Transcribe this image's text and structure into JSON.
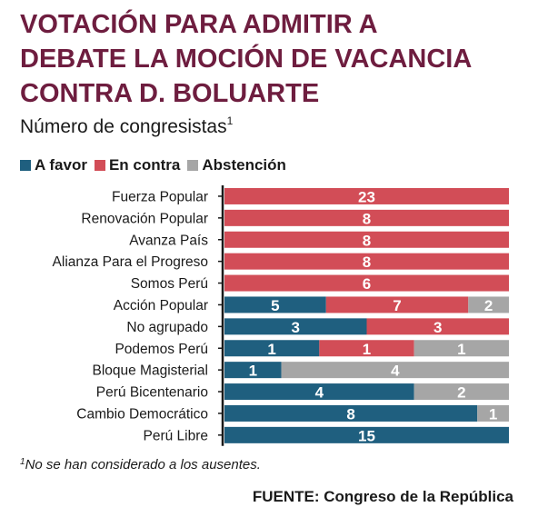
{
  "title_lines": [
    "VOTACIÓN PARA ADMITIR A",
    "DEBATE LA MOCIÓN DE VACANCIA",
    "CONTRA D. BOLUARTE"
  ],
  "subtitle": "Número de congresistas",
  "subtitle_sup": "1",
  "footnote_sup": "1",
  "footnote": "No se han considerado a los ausentes.",
  "source": "FUENTE: Congreso de la República",
  "colors": {
    "title": "#6e1d3f",
    "a_favor": "#1f5f7f",
    "en_contra": "#d24d57",
    "abstencion": "#a6a6a6"
  },
  "chart_data": {
    "type": "bar",
    "orientation": "horizontal",
    "stacked": true,
    "normalized": true,
    "legend_position": "top-left",
    "categories": [
      "Fuerza Popular",
      "Renovación Popular",
      "Avanza País",
      "Alianza Para el Progreso",
      "Somos Perú",
      "Acción Popular",
      "No agrupado",
      "Podemos Perú",
      "Bloque Magisterial",
      "Perú Bicentenario",
      "Cambio Democrático",
      "Perú Libre"
    ],
    "series": [
      {
        "name": "A favor",
        "color": "#1f5f7f",
        "values": [
          0,
          0,
          0,
          0,
          0,
          5,
          3,
          1,
          1,
          4,
          8,
          15
        ]
      },
      {
        "name": "En contra",
        "color": "#d24d57",
        "values": [
          23,
          8,
          8,
          8,
          6,
          7,
          3,
          1,
          0,
          0,
          0,
          0
        ]
      },
      {
        "name": "Abstención",
        "color": "#a6a6a6",
        "values": [
          0,
          0,
          0,
          0,
          0,
          2,
          0,
          1,
          4,
          2,
          1,
          0
        ]
      }
    ]
  }
}
